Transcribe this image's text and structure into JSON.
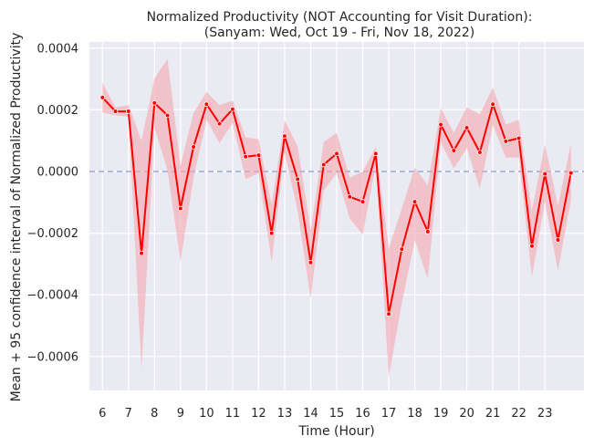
{
  "chart_data": {
    "type": "line",
    "title": "Normalized Productivity (NOT Accounting for Visit Duration):",
    "subtitle": "(Sanyam: Wed, Oct 19 - Fri, Nov 18, 2022)",
    "xlabel": "Time (Hour)",
    "ylabel": "Mean + 95 confidence interval of Normalized Productivity",
    "xticks": [
      "6",
      "7",
      "8",
      "9",
      "10",
      "11",
      "12",
      "13",
      "14",
      "15",
      "16",
      "17",
      "18",
      "19",
      "20",
      "21",
      "22",
      "23"
    ],
    "yticks": [
      "0.0004",
      "0.0002",
      "0.0000",
      "−0.0002",
      "−0.0004",
      "−0.0006"
    ],
    "xlim": [
      5.5,
      24.5
    ],
    "ylim": [
      -0.00071,
      0.00042
    ],
    "grid": true,
    "reference_line": {
      "y": 0.0,
      "style": "dashed",
      "color": "#95aad8"
    },
    "colors": {
      "line": "#ff0000",
      "band": "#f4a6ad",
      "background": "#eaeaf2",
      "grid": "#ffffff"
    },
    "series": [
      {
        "x": [
          6.0,
          6.5,
          7.0,
          7.5,
          8.0,
          8.5,
          9.0,
          9.5,
          10.0,
          10.5,
          11.0,
          11.5,
          12.0,
          12.5,
          13.0,
          13.5,
          14.0,
          14.5,
          15.0,
          15.5,
          16.0,
          16.5,
          17.0,
          17.5,
          18.0,
          18.5,
          19.0,
          19.5,
          20.0,
          20.5,
          21.0,
          21.5,
          22.0,
          22.5,
          23.0,
          23.5,
          24.0
        ],
        "y": [
          0.00024,
          0.000195,
          0.000195,
          -0.000265,
          0.000222,
          0.000182,
          -0.00012,
          8e-05,
          0.000218,
          0.000155,
          0.000202,
          4.8e-05,
          5.3e-05,
          -0.0002,
          0.000115,
          -2.5e-05,
          -0.000295,
          2.2e-05,
          5.8e-05,
          -8.2e-05,
          -9.8e-05,
          5.8e-05,
          -0.000462,
          -0.000252,
          -9.8e-05,
          -0.000195,
          0.000152,
          6.8e-05,
          0.000142,
          6.2e-05,
          0.000218,
          9.8e-05,
          0.000108,
          -0.000242,
          -8e-06,
          -0.000222,
          -5e-06
        ],
        "ci_upper": [
          0.000288,
          0.000208,
          0.000215,
          0.0001,
          0.000302,
          0.000365,
          2e-05,
          0.00019,
          0.000258,
          0.000215,
          0.00023,
          0.00011,
          0.000105,
          -0.000108,
          0.000165,
          8.2e-05,
          -0.00019,
          9.5e-05,
          0.000125,
          -2e-05,
          0.0,
          8e-05,
          -0.00025,
          -0.00012,
          1.2e-05,
          -4.5e-05,
          0.000205,
          0.000125,
          0.000208,
          0.000185,
          0.000272,
          0.000152,
          0.000168,
          -0.000128,
          8.8e-05,
          -0.000112,
          9e-05
        ],
        "ci_lower": [
          0.000192,
          0.000182,
          0.000178,
          -0.000642,
          0.00014,
          5e-06,
          -0.000292,
          -2e-05,
          0.000168,
          9.2e-05,
          0.000158,
          -2.5e-05,
          -5e-06,
          -0.000292,
          6.2e-05,
          -0.000128,
          -0.000412,
          -6.2e-05,
          -5e-06,
          -0.000152,
          -0.000205,
          2e-05,
          -0.000665,
          -0.000428,
          -0.000222,
          -0.000348,
          9.5e-05,
          1e-05,
          7.5e-05,
          -5.5e-05,
          0.00015,
          4.5e-05,
          4.5e-05,
          -0.000342,
          -9.8e-05,
          -0.000322,
          -9.2e-05
        ]
      }
    ]
  }
}
